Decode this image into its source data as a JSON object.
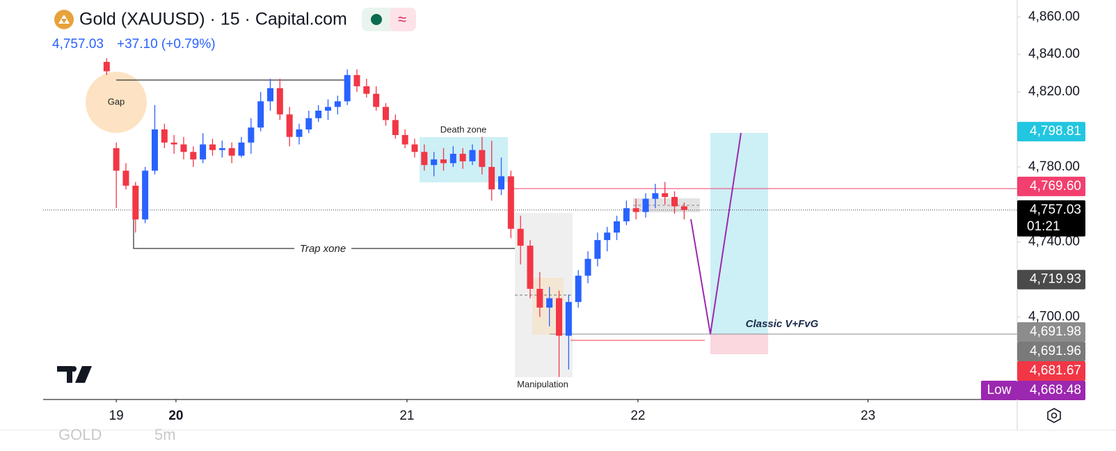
{
  "chart_data": {
    "type": "candlestick",
    "title": "Gold (XAUUSD) · 15 · Capital.com",
    "last_price": "4,757.03",
    "change": "+37.10 (+0.79%)",
    "up_color": "#2962ff",
    "down_color": "#f23645",
    "x": [
      -1,
      0,
      1,
      2,
      3,
      4,
      5,
      6,
      7,
      8,
      9,
      10,
      11,
      12,
      13,
      14,
      15,
      16,
      17,
      18,
      19,
      20,
      21,
      22,
      23,
      24,
      25,
      26,
      27,
      28,
      29,
      30,
      31,
      32,
      33,
      34,
      35,
      36,
      37,
      38,
      39,
      40,
      41,
      42,
      43,
      44,
      45,
      46,
      47,
      48,
      49,
      50,
      51,
      52,
      53,
      54,
      55,
      56,
      57,
      58,
      59
    ],
    "open": [
      4836,
      4790,
      4778,
      4770,
      4752,
      4778,
      4800,
      4793,
      4792,
      4788,
      4784,
      4792,
      4789,
      4790,
      4786,
      4793,
      4801,
      4815,
      4822,
      4808,
      4796,
      4800,
      4806,
      4810,
      4812,
      4815,
      4829,
      4823,
      4819,
      4812,
      4805,
      4797,
      4792,
      4788,
      4781,
      4784,
      4782,
      4787,
      4783,
      4789,
      4780,
      4768,
      4775,
      4747,
      4738,
      4715,
      4705,
      4710,
      4690,
      4708,
      4722,
      4731,
      4741,
      4745,
      4751,
      4758,
      4756,
      4763,
      4766,
      4764,
      4759
    ],
    "high": [
      4838,
      4793,
      4782,
      4772,
      4780,
      4813,
      4803,
      4797,
      4796,
      4791,
      4798,
      4795,
      4794,
      4793,
      4796,
      4806,
      4820,
      4827,
      4827,
      4812,
      4803,
      4810,
      4813,
      4816,
      4818,
      4832,
      4832,
      4827,
      4823,
      4814,
      4808,
      4800,
      4795,
      4792,
      4788,
      4790,
      4791,
      4790,
      4792,
      4796,
      4794,
      4785,
      4778,
      4754,
      4741,
      4724,
      4716,
      4714,
      4712,
      4725,
      4735,
      4745,
      4748,
      4754,
      4762,
      4763,
      4766,
      4771,
      4772,
      4767,
      4761
    ],
    "low": [
      4829,
      4758,
      4768,
      4745,
      4750,
      4776,
      4790,
      4787,
      4784,
      4780,
      4782,
      4786,
      4785,
      4782,
      4785,
      4787,
      4799,
      4810,
      4805,
      4791,
      4792,
      4798,
      4804,
      4805,
      4808,
      4813,
      4820,
      4817,
      4810,
      4802,
      4795,
      4790,
      4785,
      4778,
      4775,
      4778,
      4780,
      4779,
      4781,
      4776,
      4762,
      4765,
      4742,
      4728,
      4710,
      4700,
      4695,
      4668,
      4672,
      4705,
      4718,
      4727,
      4735,
      4741,
      4749,
      4752,
      4753,
      4758,
      4760,
      4755,
      4752
    ],
    "close": [
      4831,
      4778,
      4770,
      4752,
      4778,
      4800,
      4793,
      4792,
      4788,
      4784,
      4792,
      4789,
      4790,
      4786,
      4793,
      4801,
      4815,
      4822,
      4808,
      4796,
      4800,
      4806,
      4810,
      4812,
      4815,
      4829,
      4823,
      4819,
      4812,
      4805,
      4797,
      4792,
      4788,
      4781,
      4784,
      4782,
      4787,
      4783,
      4789,
      4780,
      4768,
      4775,
      4747,
      4738,
      4715,
      4705,
      4710,
      4690,
      4708,
      4722,
      4731,
      4741,
      4745,
      4751,
      4758,
      4756,
      4763,
      4766,
      4764,
      4759,
      4757.03
    ],
    "ylim": [
      4656,
      4869
    ],
    "yticks": [
      {
        "value": 4700,
        "label": "4,700.00"
      },
      {
        "value": 4740,
        "label": "4,740.00"
      },
      {
        "value": 4780,
        "label": "4,780.00"
      },
      {
        "value": 4820,
        "label": "4,820.00"
      },
      {
        "value": 4840,
        "label": "4,840.00"
      },
      {
        "value": 4860,
        "label": "4,860.00"
      }
    ],
    "xlim": [
      -7.6,
      93.6
    ],
    "xticks": [
      {
        "value": 0,
        "label": "19"
      },
      {
        "value": 6.2,
        "label": "20"
      },
      {
        "value": 30.2,
        "label": "21"
      },
      {
        "value": 54.2,
        "label": "22"
      },
      {
        "value": 78.1,
        "label": "23"
      }
    ],
    "price_labels": [
      {
        "value": 4798.81,
        "label": "4,798.81",
        "color": "#22c6e0"
      },
      {
        "value": 4769.6,
        "label": "4,769.60",
        "color": "#f23f6e"
      },
      {
        "value": 4757.03,
        "label": "4,757.03",
        "sublabel": "01:21",
        "color": "#000000"
      },
      {
        "value": 4719.93,
        "label": "4,719.93",
        "color": "#4a4a4a"
      },
      {
        "value": 4691.98,
        "label": "4,691.98",
        "color": "#8c8c8c"
      },
      {
        "value": 4691.96,
        "label": "4,691.96",
        "color": "#7a7a7a"
      },
      {
        "value": 4681.67,
        "label": "4,681.67",
        "color": "#f23645"
      },
      {
        "value": 4668.48,
        "label": "4,668.48",
        "tag": "Low",
        "color": "#9c27b0"
      }
    ],
    "annotations": [
      "Gap",
      "Death zone",
      "Trap xone",
      "Manipulation",
      "Classic V+FvG"
    ],
    "footer": [
      "GOLD",
      "5m"
    ]
  }
}
